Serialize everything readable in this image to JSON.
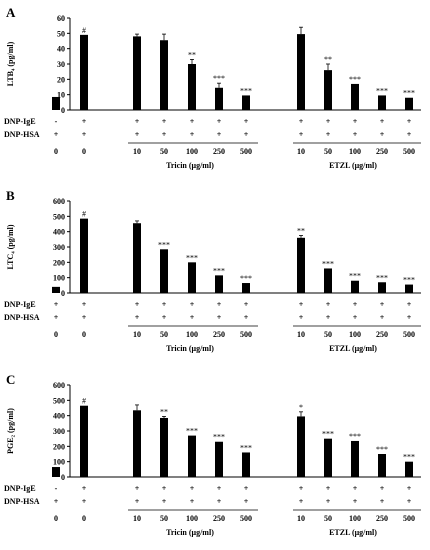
{
  "row_labels": [
    "DNP-IgE",
    "DNP-HSA"
  ],
  "group_labels": [
    "Tricin (μg/ml)",
    "ETZL (μg/ml)"
  ],
  "chart_data": [
    {
      "type": "bar",
      "panel_label": "A",
      "ylabel": "LTB₄ (pg/ml)",
      "ylim": [
        0,
        60
      ],
      "yticks": [
        0,
        10,
        20,
        30,
        40,
        50,
        60
      ],
      "values": [
        8.5,
        49,
        48,
        45.5,
        30,
        14.5,
        9.5,
        49.5,
        26,
        17,
        9.5,
        8
      ],
      "errors": [
        0,
        0,
        1.5,
        4,
        3,
        3,
        0,
        4.5,
        4,
        0,
        0,
        0
      ],
      "marks": [
        "",
        "#",
        "",
        "",
        "**",
        "***",
        "***",
        "",
        "**",
        "***",
        "***",
        "***"
      ],
      "ige": [
        "-",
        "+",
        "+",
        "+",
        "+",
        "+",
        "+",
        "+",
        "+",
        "+",
        "+",
        "+"
      ],
      "hsa": [
        "+",
        "+",
        "+",
        "+",
        "+",
        "+",
        "+",
        "+",
        "+",
        "+",
        "+",
        "+"
      ],
      "dose": [
        "0",
        "0",
        "10",
        "50",
        "100",
        "250",
        "500",
        "10",
        "50",
        "100",
        "250",
        "500"
      ]
    },
    {
      "type": "bar",
      "panel_label": "B",
      "ylabel": "LTC₄ (pg/ml)",
      "ylim": [
        0,
        600
      ],
      "yticks": [
        0,
        100,
        200,
        300,
        400,
        500,
        600
      ],
      "values": [
        40,
        485,
        455,
        285,
        200,
        115,
        65,
        360,
        160,
        80,
        70,
        55
      ],
      "errors": [
        0,
        0,
        15,
        0,
        0,
        0,
        0,
        15,
        0,
        0,
        0,
        0
      ],
      "marks": [
        "",
        "#",
        "",
        "***",
        "***",
        "***",
        "***",
        "**",
        "***",
        "***",
        "***",
        "***"
      ],
      "ige": [
        "+",
        "+",
        "+",
        "+",
        "+",
        "+",
        "+",
        "+",
        "+",
        "+",
        "+",
        "+"
      ],
      "hsa": [
        "+",
        "+",
        "+",
        "+",
        "+",
        "+",
        "+",
        "+",
        "+",
        "+",
        "+",
        "+"
      ],
      "dose": [
        "0",
        "0",
        "10",
        "50",
        "100",
        "250",
        "500",
        "10",
        "50",
        "100",
        "250",
        "500"
      ]
    },
    {
      "type": "bar",
      "panel_label": "C",
      "ylabel": "PGE₂ (pg/ml)",
      "ylim": [
        0,
        600
      ],
      "yticks": [
        0,
        100,
        200,
        300,
        400,
        500,
        600
      ],
      "values": [
        65,
        465,
        435,
        385,
        270,
        230,
        160,
        395,
        250,
        235,
        150,
        100
      ],
      "errors": [
        0,
        0,
        35,
        10,
        0,
        0,
        0,
        30,
        0,
        0,
        0,
        0
      ],
      "marks": [
        "",
        "#",
        "",
        "**",
        "***",
        "***",
        "***",
        "*",
        "***",
        "***",
        "***",
        "***"
      ],
      "ige": [
        "-",
        "+",
        "+",
        "+",
        "+",
        "+",
        "+",
        "+",
        "+",
        "+",
        "+",
        "+"
      ],
      "hsa": [
        "+",
        "+",
        "+",
        "+",
        "+",
        "+",
        "+",
        "+",
        "+",
        "+",
        "+",
        "+"
      ],
      "dose": [
        "0",
        "0",
        "10",
        "50",
        "100",
        "250",
        "500",
        "10",
        "50",
        "100",
        "250",
        "500"
      ]
    }
  ]
}
